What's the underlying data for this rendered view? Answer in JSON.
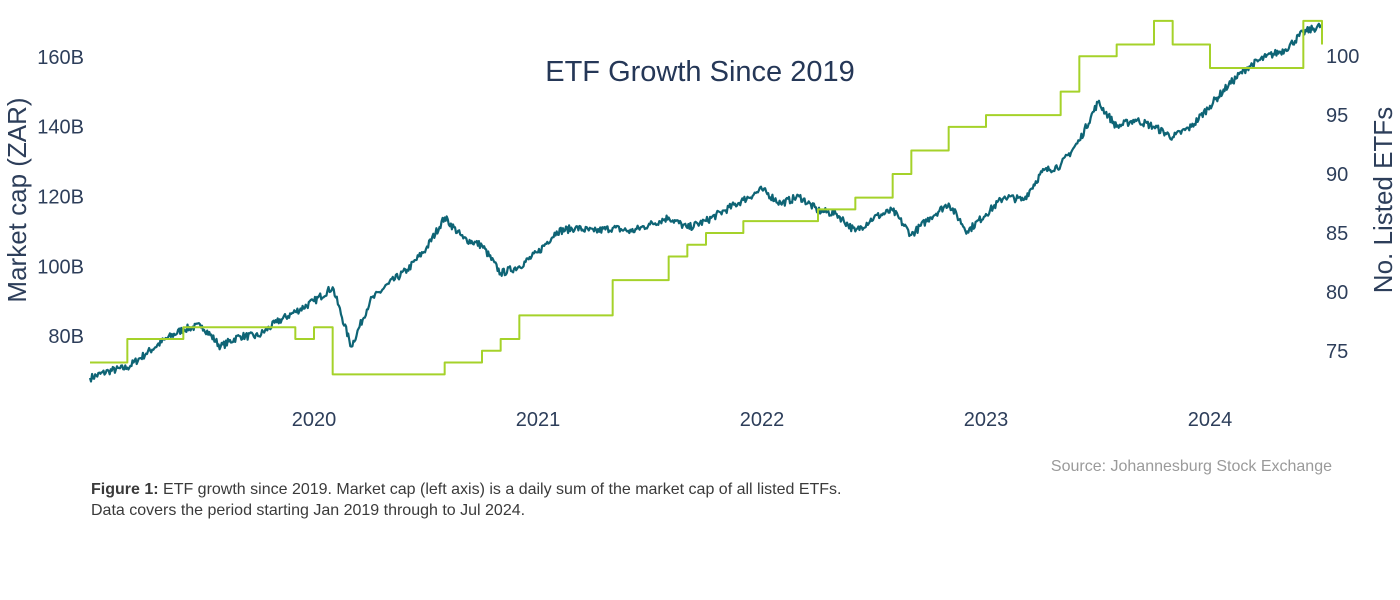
{
  "chart_data": {
    "type": "line",
    "title": "ETF Growth Since 2019",
    "x_ticks": [
      "2020",
      "2021",
      "2022",
      "2023",
      "2024"
    ],
    "x_range": [
      "2019-01",
      "2024-07"
    ],
    "y_left": {
      "label": "Market cap (ZAR)",
      "ticks": [
        "80B",
        "100B",
        "120B",
        "140B",
        "160B"
      ],
      "tick_values": [
        80,
        100,
        120,
        140,
        160
      ],
      "range": [
        64,
        172
      ]
    },
    "y_right": {
      "label": "No. Listed ETFs",
      "ticks": [
        "75",
        "80",
        "85",
        "90",
        "95",
        "100"
      ],
      "tick_values": [
        75,
        80,
        85,
        90,
        95,
        100
      ],
      "range": [
        71.5,
        103.5
      ]
    },
    "grid": false,
    "series": [
      {
        "axis": "left",
        "color": "#0e6475",
        "points": [
          [
            "2019-01",
            68
          ],
          [
            "2019-02",
            70
          ],
          [
            "2019-03",
            71
          ],
          [
            "2019-04",
            75
          ],
          [
            "2019-05",
            79
          ],
          [
            "2019-06",
            82
          ],
          [
            "2019-07",
            83
          ],
          [
            "2019-08",
            77
          ],
          [
            "2019-09",
            80
          ],
          [
            "2019-10",
            80
          ],
          [
            "2019-11",
            84
          ],
          [
            "2019-12",
            87
          ],
          [
            "2020-01",
            90
          ],
          [
            "2020-02",
            94
          ],
          [
            "2020-03",
            77
          ],
          [
            "2020-04",
            90
          ],
          [
            "2020-05",
            95
          ],
          [
            "2020-06",
            99
          ],
          [
            "2020-07",
            105
          ],
          [
            "2020-08",
            114
          ],
          [
            "2020-09",
            108
          ],
          [
            "2020-10",
            106
          ],
          [
            "2020-11",
            98
          ],
          [
            "2020-12",
            100
          ],
          [
            "2021-01",
            104
          ],
          [
            "2021-02",
            110
          ],
          [
            "2021-03",
            111
          ],
          [
            "2021-04",
            110
          ],
          [
            "2021-05",
            111
          ],
          [
            "2021-06",
            110
          ],
          [
            "2021-07",
            112
          ],
          [
            "2021-08",
            114
          ],
          [
            "2021-09",
            111
          ],
          [
            "2021-10",
            113
          ],
          [
            "2021-11",
            116
          ],
          [
            "2021-12",
            119
          ],
          [
            "2022-01",
            122
          ],
          [
            "2022-02",
            118
          ],
          [
            "2022-03",
            120
          ],
          [
            "2022-04",
            116
          ],
          [
            "2022-05",
            115
          ],
          [
            "2022-06",
            110
          ],
          [
            "2022-07",
            114
          ],
          [
            "2022-08",
            116
          ],
          [
            "2022-09",
            109
          ],
          [
            "2022-10",
            114
          ],
          [
            "2022-11",
            118
          ],
          [
            "2022-12",
            110
          ],
          [
            "2023-01",
            115
          ],
          [
            "2023-02",
            120
          ],
          [
            "2023-03",
            119
          ],
          [
            "2023-04",
            127
          ],
          [
            "2023-05",
            129
          ],
          [
            "2023-06",
            136
          ],
          [
            "2023-07",
            147
          ],
          [
            "2023-08",
            140
          ],
          [
            "2023-09",
            142
          ],
          [
            "2023-10",
            140
          ],
          [
            "2023-11",
            137
          ],
          [
            "2023-12",
            140
          ],
          [
            "2024-01",
            146
          ],
          [
            "2024-02",
            152
          ],
          [
            "2024-03",
            157
          ],
          [
            "2024-04",
            160
          ],
          [
            "2024-05",
            162
          ],
          [
            "2024-06",
            167
          ],
          [
            "2024-07",
            169
          ]
        ]
      },
      {
        "axis": "right",
        "color": "#a5d22a",
        "step": true,
        "points": [
          [
            "2019-01",
            74
          ],
          [
            "2019-03",
            76
          ],
          [
            "2019-06",
            77
          ],
          [
            "2019-12",
            76
          ],
          [
            "2020-01",
            77
          ],
          [
            "2020-02",
            73
          ],
          [
            "2020-05",
            73
          ],
          [
            "2020-08",
            74
          ],
          [
            "2020-10",
            75
          ],
          [
            "2020-11",
            76
          ],
          [
            "2020-12",
            78
          ],
          [
            "2021-04",
            78
          ],
          [
            "2021-05",
            81
          ],
          [
            "2021-08",
            83
          ],
          [
            "2021-09",
            84
          ],
          [
            "2021-10",
            85
          ],
          [
            "2021-12",
            86
          ],
          [
            "2022-04",
            87
          ],
          [
            "2022-06",
            88
          ],
          [
            "2022-08",
            90
          ],
          [
            "2022-09",
            92
          ],
          [
            "2022-11",
            94
          ],
          [
            "2023-01",
            95
          ],
          [
            "2023-05",
            97
          ],
          [
            "2023-06",
            100
          ],
          [
            "2023-08",
            101
          ],
          [
            "2023-10",
            103
          ],
          [
            "2023-11",
            101
          ],
          [
            "2024-01",
            99
          ],
          [
            "2024-04",
            99
          ],
          [
            "2024-06",
            103
          ],
          [
            "2024-07",
            101
          ]
        ]
      }
    ]
  },
  "source": "Source: Johannesburg Stock Exchange",
  "caption": {
    "label": "Figure 1:",
    "text": "ETF growth since 2019. Market cap (left axis) is a daily sum of the market cap of all listed ETFs.",
    "line2": "Data covers the period starting Jan 2019 through to Jul 2024."
  }
}
